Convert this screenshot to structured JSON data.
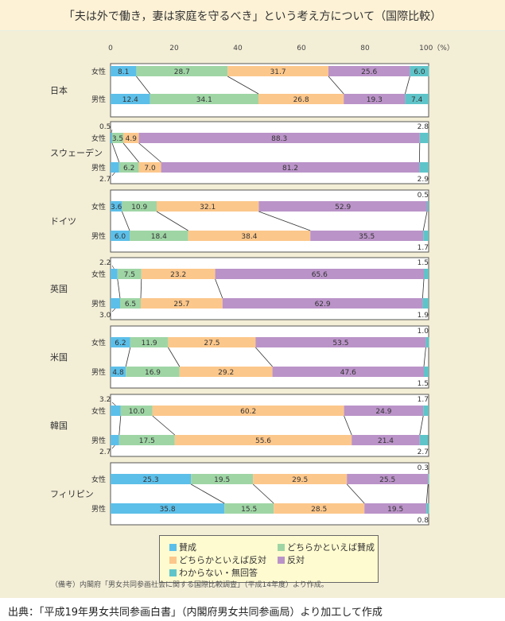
{
  "title": "「夫は外で働き，妻は家庭を守るべき」という考え方について（国際比較）",
  "chart_data": {
    "type": "bar",
    "orientation": "horizontal-stacked",
    "title": "「夫は外で働き，妻は家庭を守るべき」という考え方について（国際比較）",
    "xlim": [
      0,
      100
    ],
    "xticks": [
      "0",
      "20",
      "40",
      "60",
      "80",
      "100（%）"
    ],
    "xtick_values": [
      0,
      20,
      40,
      60,
      80,
      100
    ],
    "series_names": [
      "賛成",
      "どちらかといえば賛成",
      "どちらかといえば反対",
      "反対",
      "わからない・無回答"
    ],
    "colors": [
      "#5cbfe9",
      "#9fd5a5",
      "#fcc78b",
      "#ba93c8",
      "#5fc4c9"
    ],
    "sex_labels": [
      "女性",
      "男性"
    ],
    "countries": [
      {
        "name": "日本",
        "female": [
          8.1,
          28.7,
          31.7,
          25.6,
          6.0
        ],
        "male": [
          12.4,
          34.1,
          26.8,
          19.3,
          7.4
        ]
      },
      {
        "name": "スウェーデン",
        "female": [
          0.5,
          3.5,
          4.9,
          88.3,
          2.8
        ],
        "male": [
          2.7,
          6.2,
          7.0,
          81.2,
          2.9
        ]
      },
      {
        "name": "ドイツ",
        "female": [
          3.6,
          10.9,
          32.1,
          52.9,
          0.5
        ],
        "male": [
          6.0,
          18.4,
          38.4,
          35.5,
          1.7
        ]
      },
      {
        "name": "英国",
        "female": [
          2.2,
          7.5,
          23.2,
          65.6,
          1.5
        ],
        "male": [
          3.0,
          6.5,
          25.7,
          62.9,
          1.9
        ]
      },
      {
        "name": "米国",
        "female": [
          6.2,
          11.9,
          27.5,
          53.5,
          1.0
        ],
        "male": [
          4.8,
          16.9,
          29.2,
          47.6,
          1.5
        ]
      },
      {
        "name": "韓国",
        "female": [
          3.2,
          10.0,
          60.2,
          24.9,
          1.7
        ],
        "male": [
          2.7,
          17.5,
          55.6,
          21.4,
          2.7
        ]
      },
      {
        "name": "フィリピン",
        "female": [
          25.3,
          19.5,
          29.5,
          25.5,
          0.3
        ],
        "male": [
          35.8,
          15.5,
          28.5,
          19.5,
          0.8
        ]
      }
    ],
    "legend_placement": "bottom-center"
  },
  "note": "（備考）内閣府「男女共同参画社会に関する国際比較調査」（平成14年度）より作成。",
  "source": "出典：「平成19年男女共同参画白書」（内閣府男女共同参画局）より加工して作成"
}
